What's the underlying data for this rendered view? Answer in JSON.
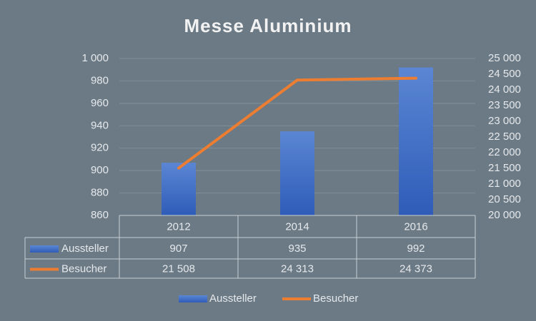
{
  "chart_data": {
    "type": "bar-line",
    "title": "Messe Aluminium",
    "categories": [
      "2012",
      "2014",
      "2016"
    ],
    "series": [
      {
        "name": "Aussteller",
        "color": "#3f6fc6",
        "values": [
          907,
          935,
          992
        ]
      },
      {
        "name": "Besucher",
        "color": "#ed7d31",
        "axis": "y2",
        "values": [
          21508,
          24313,
          24373
        ],
        "value_labels": [
          "21 508",
          "24 313",
          "24 373"
        ]
      }
    ],
    "ylim": [
      860,
      1000
    ],
    "yticks": [
      860,
      880,
      900,
      920,
      940,
      960,
      980,
      {
        "value": 1000,
        "label": "1 000"
      }
    ],
    "y2lim": [
      20000,
      25000
    ],
    "y2ticks": [
      {
        "value": 20000,
        "label": "20 000"
      },
      {
        "value": 20500,
        "label": "20 500"
      },
      {
        "value": 21000,
        "label": "21 000"
      },
      {
        "value": 21500,
        "label": "21 500"
      },
      {
        "value": 22000,
        "label": "22 000"
      },
      {
        "value": 22500,
        "label": "22 500"
      },
      {
        "value": 23000,
        "label": "23 000"
      },
      {
        "value": 23500,
        "label": "23 500"
      },
      {
        "value": 24000,
        "label": "24 000"
      },
      {
        "value": 24500,
        "label": "24 500"
      },
      {
        "value": 25000,
        "label": "25 000"
      }
    ],
    "grid": true
  }
}
